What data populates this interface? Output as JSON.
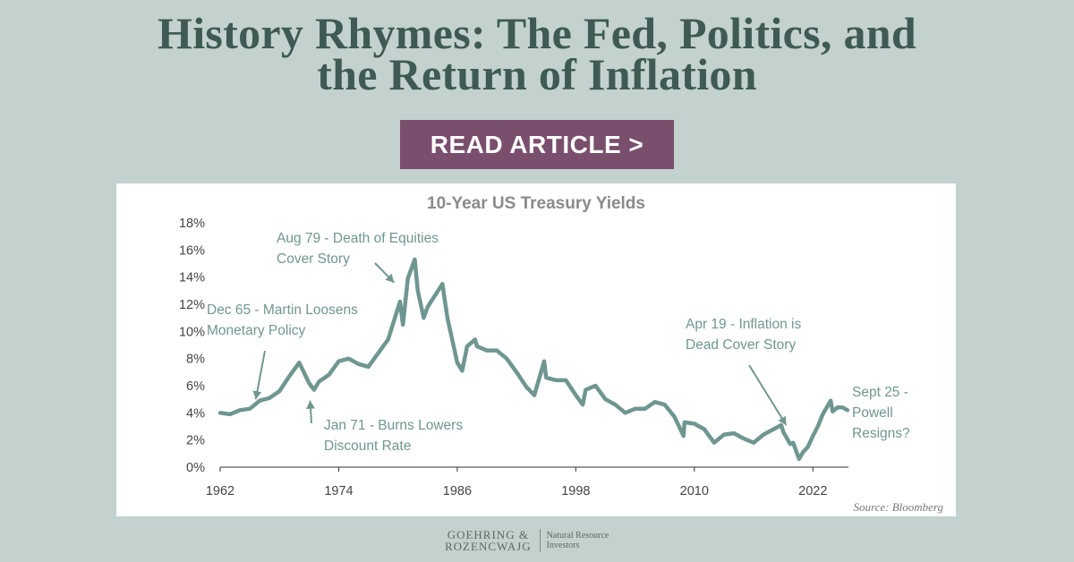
{
  "headline": {
    "line1": "History Rhymes: The Fed, Politics, and",
    "line2": "the Return of Inflation"
  },
  "cta": {
    "label": "READ ARTICLE >"
  },
  "colors": {
    "background": "#c3d2cf",
    "headline": "#3f5a54",
    "button": "#7a4f6d",
    "series": "#6f9690",
    "annotation": "#6f9690",
    "axis_text": "#444444"
  },
  "chart_data": {
    "type": "line",
    "title": "10-Year US Treasury Yields",
    "source": "Source: Bloomberg",
    "xlim": [
      1962,
      2025.6
    ],
    "ylim": [
      0,
      18
    ],
    "y_ticks": [
      "0%",
      "2%",
      "4%",
      "6%",
      "8%",
      "10%",
      "12%",
      "14%",
      "16%",
      "18%"
    ],
    "x_ticks": [
      "1962",
      "1974",
      "1986",
      "1998",
      "2010",
      "2022"
    ],
    "grid": false,
    "legend": "none",
    "series": [
      {
        "x": [
          1962,
          1963,
          1964,
          1965,
          1966,
          1967,
          1968,
          1969,
          1970,
          1971,
          1971.5,
          1972,
          1973,
          1974,
          1975,
          1976,
          1977,
          1978,
          1979,
          1979.6,
          1980.2,
          1980.5,
          1981,
          1981.7,
          1982,
          1982.6,
          1983,
          1984.5,
          1985,
          1986,
          1986.5,
          1987,
          1987.8,
          1988,
          1989,
          1990,
          1991,
          1992,
          1993,
          1993.8,
          1994.8,
          1995,
          1996,
          1997,
          1998,
          1998.7,
          1999,
          2000,
          2001,
          2002,
          2003,
          2004,
          2005,
          2006,
          2007,
          2008,
          2008.9,
          2009,
          2010,
          2011,
          2012,
          2013,
          2014,
          2015,
          2016,
          2017,
          2018.8,
          2019,
          2019.7,
          2020,
          2020.6,
          2021,
          2021.5,
          2022,
          2022.5,
          2023,
          2023.8,
          2024,
          2024.5,
          2025,
          2025.5
        ],
        "values": [
          4.0,
          3.9,
          4.2,
          4.3,
          4.9,
          5.1,
          5.6,
          6.7,
          7.7,
          6.2,
          5.7,
          6.3,
          6.8,
          7.8,
          8.0,
          7.6,
          7.4,
          8.4,
          9.4,
          10.8,
          12.2,
          10.5,
          13.9,
          15.3,
          13.0,
          11.0,
          11.8,
          13.5,
          11.0,
          7.7,
          7.1,
          8.9,
          9.4,
          8.9,
          8.6,
          8.6,
          8.0,
          7.0,
          5.9,
          5.3,
          7.8,
          6.6,
          6.4,
          6.4,
          5.3,
          4.6,
          5.7,
          6.0,
          5.0,
          4.6,
          4.0,
          4.3,
          4.3,
          4.8,
          4.6,
          3.7,
          2.3,
          3.3,
          3.2,
          2.8,
          1.8,
          2.4,
          2.5,
          2.1,
          1.8,
          2.4,
          3.1,
          2.6,
          1.7,
          1.8,
          0.6,
          1.1,
          1.5,
          2.3,
          3.0,
          3.9,
          4.9,
          4.1,
          4.4,
          4.4,
          4.2
        ]
      }
    ],
    "annotations": [
      {
        "line1": "Aug 79 - Death of Equities",
        "line2": "Cover Story",
        "x": 1979.6,
        "y": 13.6
      },
      {
        "line1": "Dec 65 - Martin Loosens",
        "line2": "Monetary Policy",
        "x": 1965.6,
        "y": 5.0
      },
      {
        "line1": "Jan 71 - Burns Lowers",
        "line2": "Discount Rate",
        "x": 1971.1,
        "y": 4.9
      },
      {
        "line1": "Apr 19 - Inflation is",
        "line2": "Dead Cover Story",
        "x": 2019.3,
        "y": 3.1
      },
      {
        "line1": "Sept 25 -",
        "line2": "Powell",
        "line3": "Resigns?"
      }
    ]
  },
  "logo": {
    "firm_line1": "GOEHRING &",
    "firm_line2": "ROZENCWAJG",
    "tagline1": "Natural Resource",
    "tagline2": "Investors"
  }
}
